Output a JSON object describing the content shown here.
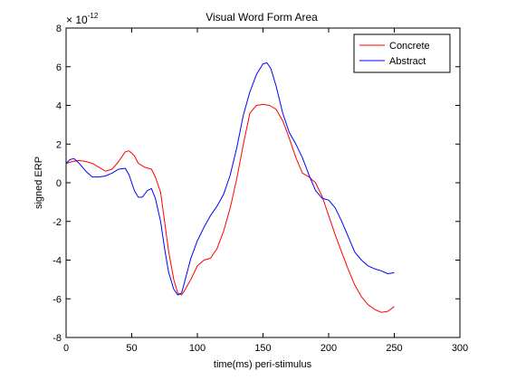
{
  "chart_data": {
    "type": "line",
    "title": "Visual Word Form Area",
    "xlabel": "time(ms) peri-stimulus",
    "ylabel": "signed ERP",
    "y_exponent_label": "× 10",
    "y_exponent_power": "-12",
    "xlim": [
      0,
      300
    ],
    "ylim": [
      -8,
      8
    ],
    "xticks": [
      0,
      50,
      100,
      150,
      200,
      250,
      300
    ],
    "yticks": [
      -8,
      -6,
      -4,
      -2,
      0,
      2,
      4,
      6,
      8
    ],
    "grid": false,
    "legend_position": "top-right",
    "series": [
      {
        "name": "Concrete",
        "color": "#ff0000",
        "x": [
          0,
          5,
          10,
          15,
          20,
          25,
          30,
          35,
          40,
          45,
          48,
          52,
          55,
          60,
          65,
          68,
          72,
          75,
          78,
          82,
          85,
          88,
          90,
          95,
          100,
          105,
          110,
          115,
          120,
          125,
          130,
          135,
          140,
          145,
          150,
          155,
          160,
          165,
          170,
          175,
          180,
          185,
          190,
          195,
          200,
          205,
          210,
          215,
          220,
          225,
          230,
          235,
          240,
          245,
          250
        ],
        "y": [
          1.0,
          1.1,
          1.15,
          1.1,
          1.0,
          0.8,
          0.6,
          0.7,
          1.1,
          1.6,
          1.65,
          1.4,
          1.0,
          0.8,
          0.7,
          0.3,
          -0.5,
          -2.0,
          -3.5,
          -5.0,
          -5.7,
          -5.8,
          -5.6,
          -5.0,
          -4.3,
          -4.0,
          -3.9,
          -3.4,
          -2.5,
          -1.3,
          0.2,
          2.0,
          3.6,
          4.0,
          4.05,
          4.0,
          3.8,
          3.2,
          2.3,
          1.3,
          0.5,
          0.3,
          0.0,
          -0.7,
          -1.7,
          -2.7,
          -3.6,
          -4.5,
          -5.3,
          -5.9,
          -6.3,
          -6.55,
          -6.7,
          -6.65,
          -6.4
        ]
      },
      {
        "name": "Abstract",
        "color": "#0000ff",
        "x": [
          0,
          3,
          6,
          10,
          15,
          20,
          25,
          30,
          35,
          40,
          45,
          48,
          52,
          55,
          58,
          62,
          65,
          68,
          72,
          75,
          78,
          82,
          85,
          88,
          90,
          95,
          100,
          105,
          110,
          115,
          120,
          125,
          130,
          135,
          140,
          145,
          150,
          153,
          156,
          160,
          165,
          170,
          175,
          180,
          185,
          190,
          195,
          200,
          205,
          210,
          215,
          220,
          225,
          230,
          235,
          240,
          245,
          250
        ],
        "y": [
          1.0,
          1.2,
          1.25,
          1.0,
          0.6,
          0.3,
          0.3,
          0.35,
          0.5,
          0.7,
          0.75,
          0.4,
          -0.4,
          -0.75,
          -0.75,
          -0.4,
          -0.3,
          -0.8,
          -2.0,
          -3.4,
          -4.6,
          -5.5,
          -5.8,
          -5.7,
          -5.2,
          -3.9,
          -3.0,
          -2.3,
          -1.7,
          -1.2,
          -0.6,
          0.4,
          1.8,
          3.5,
          4.7,
          5.6,
          6.15,
          6.2,
          5.9,
          5.0,
          3.6,
          2.6,
          2.0,
          1.3,
          0.4,
          -0.4,
          -0.8,
          -0.9,
          -1.3,
          -2.0,
          -2.8,
          -3.6,
          -4.0,
          -4.3,
          -4.45,
          -4.55,
          -4.7,
          -4.65
        ]
      }
    ]
  }
}
